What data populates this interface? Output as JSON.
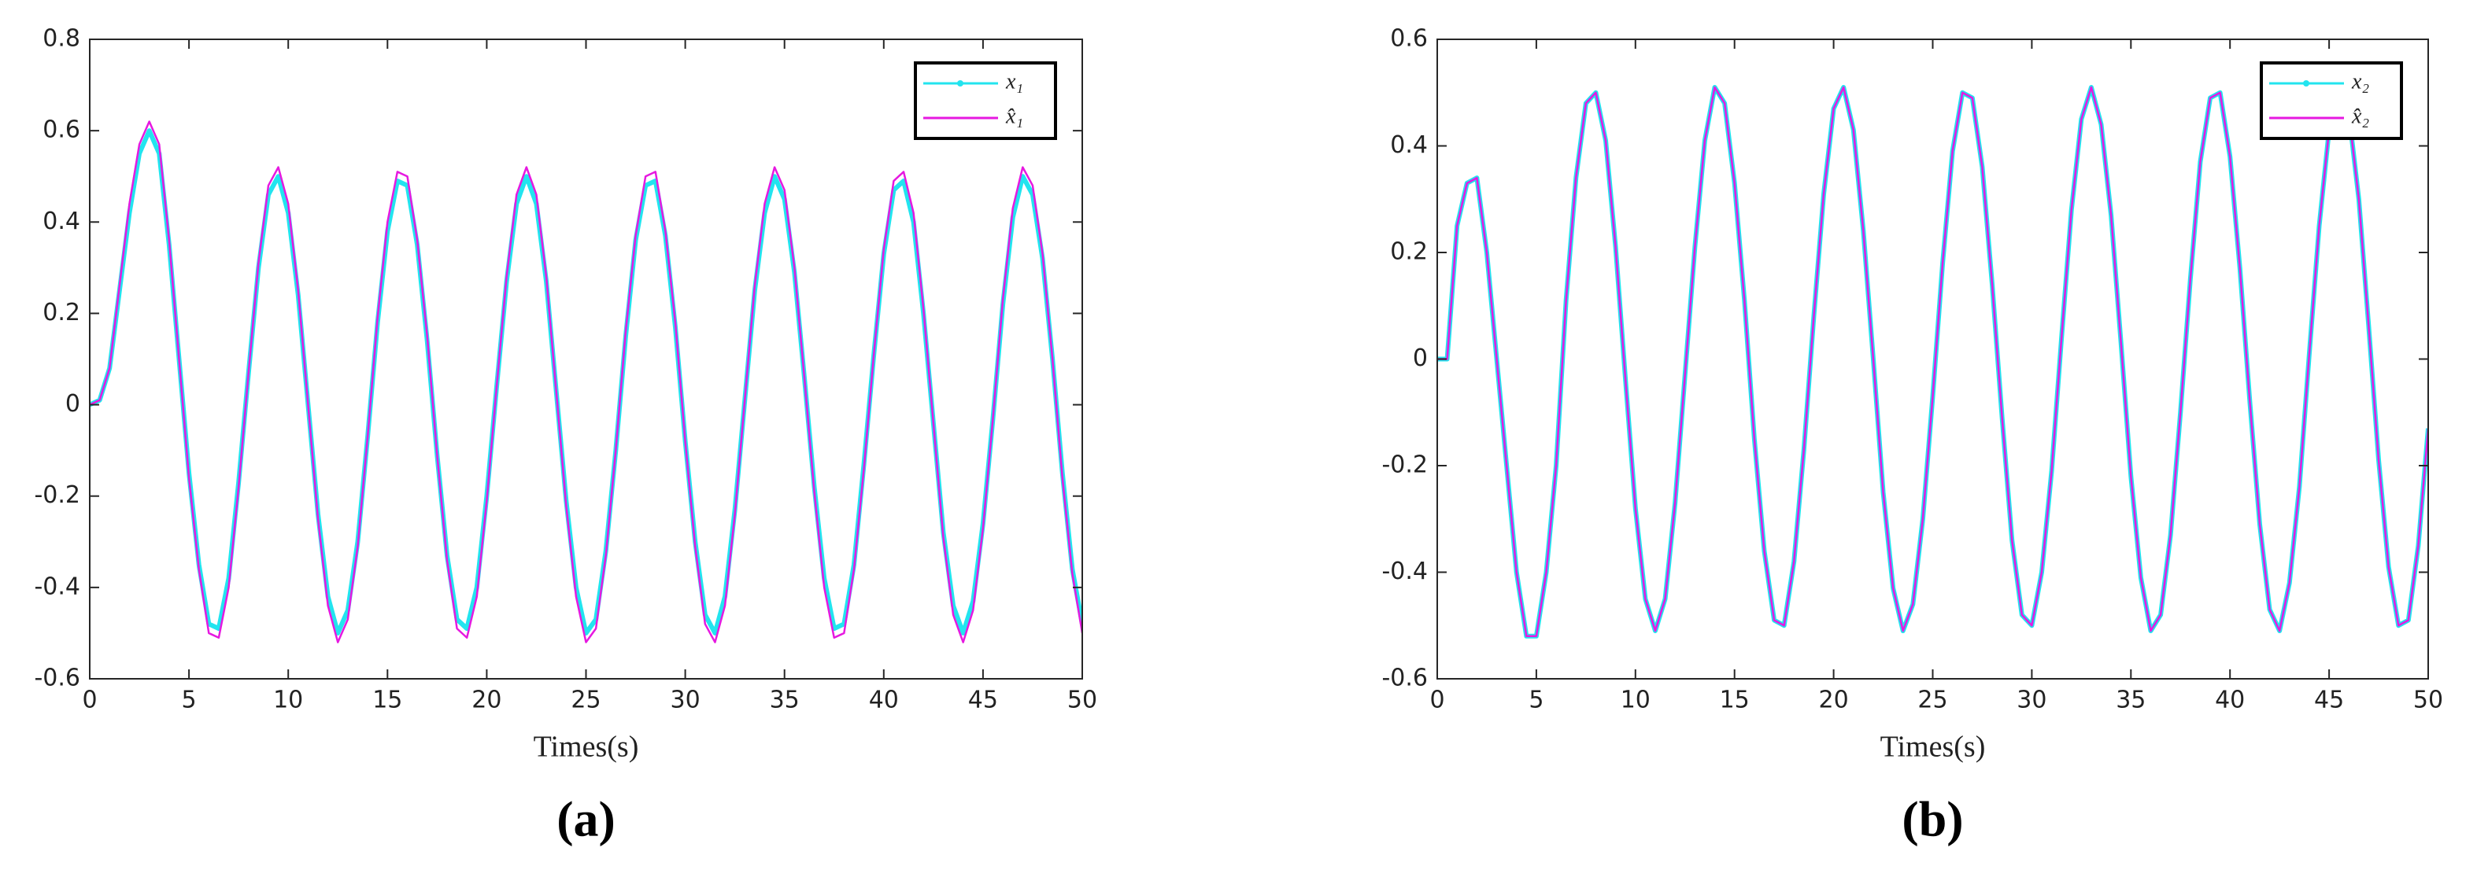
{
  "chart_data": [
    {
      "type": "line",
      "caption": "(a)",
      "xlabel": "Times(s)",
      "x": [
        0,
        0.5,
        1,
        1.5,
        2,
        2.5,
        3,
        3.5,
        4,
        4.5,
        5,
        5.5,
        6,
        6.5,
        7,
        7.5,
        8,
        8.5,
        9,
        9.5,
        10,
        10.5,
        11,
        11.5,
        12,
        12.5,
        13,
        13.5,
        14,
        14.5,
        15,
        15.5,
        16,
        16.5,
        17,
        17.5,
        18,
        18.5,
        19,
        19.5,
        20,
        20.5,
        21,
        21.5,
        22,
        22.5,
        23,
        23.5,
        24,
        24.5,
        25,
        25.5,
        26,
        26.5,
        27,
        27.5,
        28,
        28.5,
        29,
        29.5,
        30,
        30.5,
        31,
        31.5,
        32,
        32.5,
        33,
        33.5,
        34,
        34.5,
        35,
        35.5,
        36,
        36.5,
        37,
        37.5,
        38,
        38.5,
        39,
        39.5,
        40,
        40.5,
        41,
        41.5,
        42,
        42.5,
        43,
        43.5,
        44,
        44.5,
        45,
        45.5,
        46,
        46.5,
        47,
        47.5,
        48,
        48.5,
        49,
        49.5,
        50
      ],
      "series": [
        {
          "name": "x₁",
          "color": "#22e4ef",
          "values": [
            0,
            0.01,
            0.08,
            0.25,
            0.42,
            0.55,
            0.6,
            0.55,
            0.35,
            0.1,
            -0.15,
            -0.35,
            -0.48,
            -0.49,
            -0.38,
            -0.17,
            0.07,
            0.3,
            0.46,
            0.5,
            0.42,
            0.24,
            0,
            -0.24,
            -0.42,
            -0.5,
            -0.45,
            -0.3,
            -0.07,
            0.18,
            0.38,
            0.49,
            0.48,
            0.35,
            0.14,
            -0.11,
            -0.33,
            -0.47,
            -0.49,
            -0.4,
            -0.2,
            0.04,
            0.27,
            0.44,
            0.5,
            0.44,
            0.27,
            0.03,
            -0.21,
            -0.4,
            -0.5,
            -0.47,
            -0.32,
            -0.1,
            0.15,
            0.36,
            0.48,
            0.49,
            0.37,
            0.17,
            -0.08,
            -0.3,
            -0.46,
            -0.5,
            -0.42,
            -0.23,
            0.01,
            0.25,
            0.42,
            0.5,
            0.45,
            0.29,
            0.06,
            -0.18,
            -0.38,
            -0.49,
            -0.48,
            -0.35,
            -0.13,
            0.11,
            0.33,
            0.47,
            0.49,
            0.4,
            0.2,
            -0.04,
            -0.28,
            -0.44,
            -0.5,
            -0.43,
            -0.26,
            -0.03,
            0.22,
            0.41,
            0.5,
            0.46,
            0.32,
            0.1,
            -0.15,
            -0.36,
            -0.48
          ]
        },
        {
          "name": "x̂₁",
          "color": "#e619e0",
          "values": [
            0,
            0.01,
            0.08,
            0.26,
            0.44,
            0.57,
            0.62,
            0.57,
            0.36,
            0.1,
            -0.16,
            -0.36,
            -0.5,
            -0.51,
            -0.4,
            -0.18,
            0.07,
            0.31,
            0.48,
            0.52,
            0.44,
            0.25,
            0,
            -0.25,
            -0.44,
            -0.52,
            -0.47,
            -0.31,
            -0.07,
            0.19,
            0.4,
            0.51,
            0.5,
            0.36,
            0.15,
            -0.11,
            -0.34,
            -0.49,
            -0.51,
            -0.42,
            -0.21,
            0.04,
            0.28,
            0.46,
            0.52,
            0.46,
            0.28,
            0.03,
            -0.22,
            -0.42,
            -0.52,
            -0.49,
            -0.33,
            -0.1,
            0.16,
            0.37,
            0.5,
            0.51,
            0.38,
            0.18,
            -0.08,
            -0.31,
            -0.48,
            -0.52,
            -0.44,
            -0.24,
            0.01,
            0.26,
            0.44,
            0.52,
            0.47,
            0.3,
            0.06,
            -0.19,
            -0.4,
            -0.51,
            -0.5,
            -0.36,
            -0.14,
            0.11,
            0.34,
            0.49,
            0.51,
            0.42,
            0.21,
            -0.04,
            -0.29,
            -0.46,
            -0.52,
            -0.45,
            -0.27,
            -0.03,
            0.23,
            0.43,
            0.52,
            0.48,
            0.33,
            0.1,
            -0.16,
            -0.37,
            -0.5
          ]
        }
      ],
      "xlim": [
        0,
        50
      ],
      "xticks": [
        0,
        5,
        10,
        15,
        20,
        25,
        30,
        35,
        40,
        45,
        50
      ],
      "ylim": [
        -0.6,
        0.8
      ],
      "yticks": [
        -0.6,
        -0.4,
        -0.2,
        0,
        0.2,
        0.4,
        0.6,
        0.8
      ],
      "legend": "upper right"
    },
    {
      "type": "line",
      "caption": "(b)",
      "xlabel": "Times(s)",
      "x": [
        0,
        0.5,
        1,
        1.5,
        2,
        2.5,
        3,
        3.5,
        4,
        4.5,
        5,
        5.5,
        6,
        6.5,
        7,
        7.5,
        8,
        8.5,
        9,
        9.5,
        10,
        10.5,
        11,
        11.5,
        12,
        12.5,
        13,
        13.5,
        14,
        14.5,
        15,
        15.5,
        16,
        16.5,
        17,
        17.5,
        18,
        18.5,
        19,
        19.5,
        20,
        20.5,
        21,
        21.5,
        22,
        22.5,
        23,
        23.5,
        24,
        24.5,
        25,
        25.5,
        26,
        26.5,
        27,
        27.5,
        28,
        28.5,
        29,
        29.5,
        30,
        30.5,
        31,
        31.5,
        32,
        32.5,
        33,
        33.5,
        34,
        34.5,
        35,
        35.5,
        36,
        36.5,
        37,
        37.5,
        38,
        38.5,
        39,
        39.5,
        40,
        40.5,
        41,
        41.5,
        42,
        42.5,
        43,
        43.5,
        44,
        44.5,
        45,
        45.5,
        46,
        46.5,
        47,
        47.5,
        48,
        48.5,
        49,
        49.5,
        50
      ],
      "series": [
        {
          "name": "x₂",
          "color": "#22e4ef",
          "values": [
            0,
            0,
            0.25,
            0.33,
            0.34,
            0.2,
            0,
            -0.2,
            -0.4,
            -0.52,
            -0.52,
            -0.4,
            -0.2,
            0.11,
            0.34,
            0.48,
            0.5,
            0.41,
            0.21,
            -0.04,
            -0.28,
            -0.45,
            -0.51,
            -0.45,
            -0.27,
            -0.03,
            0.21,
            0.41,
            0.51,
            0.48,
            0.33,
            0.11,
            -0.15,
            -0.36,
            -0.49,
            -0.5,
            -0.38,
            -0.17,
            0.08,
            0.31,
            0.47,
            0.51,
            0.43,
            0.24,
            0,
            -0.25,
            -0.43,
            -0.51,
            -0.46,
            -0.3,
            -0.07,
            0.18,
            0.39,
            0.5,
            0.49,
            0.36,
            0.14,
            -0.11,
            -0.34,
            -0.48,
            -0.5,
            -0.4,
            -0.21,
            0.04,
            0.28,
            0.45,
            0.51,
            0.44,
            0.27,
            0.03,
            -0.22,
            -0.41,
            -0.51,
            -0.48,
            -0.33,
            -0.1,
            0.15,
            0.37,
            0.49,
            0.5,
            0.38,
            0.17,
            -0.08,
            -0.31,
            -0.47,
            -0.51,
            -0.42,
            -0.24,
            0.01,
            0.25,
            0.43,
            0.51,
            0.46,
            0.3,
            0.06,
            -0.19,
            -0.39,
            -0.5,
            -0.49,
            -0.35,
            -0.13
          ]
        },
        {
          "name": "x̂₂",
          "color": "#e619e0",
          "values": [
            0,
            0,
            0.25,
            0.33,
            0.34,
            0.2,
            0,
            -0.2,
            -0.4,
            -0.52,
            -0.52,
            -0.4,
            -0.2,
            0.11,
            0.34,
            0.48,
            0.5,
            0.41,
            0.21,
            -0.04,
            -0.28,
            -0.45,
            -0.51,
            -0.45,
            -0.27,
            -0.03,
            0.21,
            0.41,
            0.51,
            0.48,
            0.33,
            0.11,
            -0.15,
            -0.36,
            -0.49,
            -0.5,
            -0.38,
            -0.17,
            0.08,
            0.31,
            0.47,
            0.51,
            0.43,
            0.24,
            0,
            -0.25,
            -0.43,
            -0.51,
            -0.46,
            -0.3,
            -0.07,
            0.18,
            0.39,
            0.5,
            0.49,
            0.36,
            0.14,
            -0.11,
            -0.34,
            -0.48,
            -0.5,
            -0.4,
            -0.21,
            0.04,
            0.28,
            0.45,
            0.51,
            0.44,
            0.27,
            0.03,
            -0.22,
            -0.41,
            -0.51,
            -0.48,
            -0.33,
            -0.1,
            0.15,
            0.37,
            0.49,
            0.5,
            0.38,
            0.17,
            -0.08,
            -0.31,
            -0.47,
            -0.51,
            -0.42,
            -0.24,
            0.01,
            0.25,
            0.43,
            0.51,
            0.46,
            0.3,
            0.06,
            -0.19,
            -0.39,
            -0.5,
            -0.49,
            -0.35,
            -0.13
          ]
        }
      ],
      "xlim": [
        0,
        50
      ],
      "xticks": [
        0,
        5,
        10,
        15,
        20,
        25,
        30,
        35,
        40,
        45,
        50
      ],
      "ylim": [
        -0.6,
        0.6
      ],
      "yticks": [
        -0.6,
        -0.4,
        -0.2,
        0,
        0.2,
        0.4,
        0.6
      ],
      "legend": "upper right"
    }
  ]
}
